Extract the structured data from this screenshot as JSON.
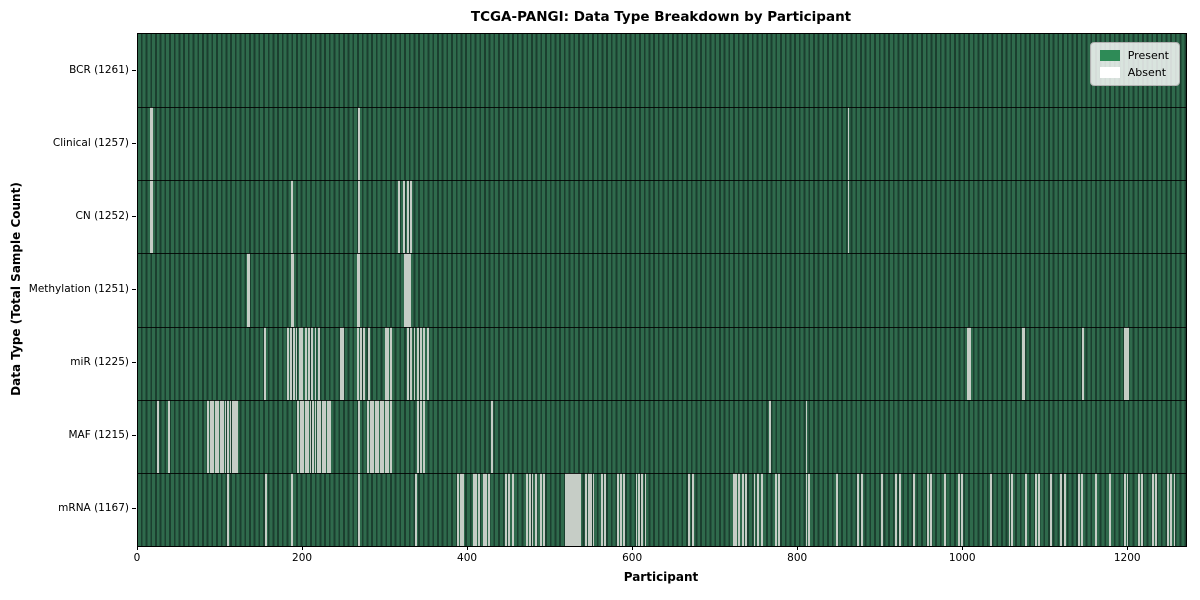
{
  "title": "TCGA-PANGI: Data Type Breakdown by Participant",
  "chart_data": {
    "type": "heatmap",
    "title": "TCGA-PANGI: Data Type Breakdown by Participant",
    "xlabel": "Participant",
    "ylabel": "Data Type (Total Sample Count)",
    "x_ticks": [
      0,
      200,
      400,
      600,
      800,
      1000,
      1200
    ],
    "x_range": [
      0,
      1270
    ],
    "total_participants": 1261,
    "grid": false,
    "legend_position": "upper right",
    "cell_encoding": "each row is green (present) for all participants 0-1260 except indices listed in absent_participants (white gaps)",
    "rows": [
      {
        "label": "BCR (1261)",
        "data_type": "BCR",
        "sample_count": 1261,
        "absent_count": 0,
        "absent_participants": []
      },
      {
        "label": "Clinical (1257)",
        "data_type": "Clinical",
        "sample_count": 1257,
        "absent_count": 4,
        "absent_participants": [
          16,
          17,
          268,
          861
        ]
      },
      {
        "label": "CN (1252)",
        "data_type": "CN",
        "sample_count": 1252,
        "absent_count": 9,
        "absent_participants": [
          16,
          17,
          187,
          268,
          316,
          322,
          327,
          331,
          861
        ]
      },
      {
        "label": "Methylation (1251)",
        "data_type": "Methylation",
        "sample_count": 1251,
        "absent_count": 10,
        "absent_participants": [
          133,
          134,
          187,
          188,
          267,
          268,
          324,
          326,
          328,
          330
        ]
      },
      {
        "label": "miR (1225)",
        "data_type": "miR",
        "sample_count": 1225,
        "absent_count": 36,
        "absent_participants": [
          154,
          182,
          185,
          189,
          192,
          196,
          199,
          203,
          207,
          211,
          215,
          219,
          246,
          248,
          267,
          270,
          274,
          280,
          300,
          303,
          307,
          327,
          331,
          335,
          339,
          343,
          347,
          351,
          1006,
          1008,
          1072,
          1074,
          1145,
          1196,
          1198,
          1200
        ]
      },
      {
        "label": "MAF (1215)",
        "data_type": "MAF",
        "sample_count": 1215,
        "absent_count": 46,
        "absent_participants": [
          24,
          37,
          85,
          88,
          91,
          94,
          97,
          100,
          103,
          106,
          109,
          112,
          115,
          117,
          120,
          194,
          197,
          200,
          203,
          206,
          209,
          212,
          215,
          218,
          221,
          224,
          227,
          230,
          233,
          268,
          279,
          282,
          285,
          288,
          291,
          294,
          297,
          300,
          303,
          306,
          339,
          343,
          347,
          429,
          766,
          810
        ]
      },
      {
        "label": "mRNA (1167)",
        "data_type": "mRNA",
        "sample_count": 1167,
        "absent_count": 94,
        "absent_participants": [
          109,
          155,
          187,
          268,
          337,
          388,
          391,
          394,
          407,
          410,
          413,
          419,
          422,
          425,
          446,
          450,
          454,
          471,
          475,
          478,
          482,
          488,
          492,
          518,
          520,
          522,
          524,
          526,
          528,
          530,
          532,
          534,
          536,
          543,
          546,
          549,
          552,
          562,
          566,
          582,
          585,
          589,
          604,
          607,
          611,
          615,
          668,
          672,
          722,
          725,
          728,
          733,
          737,
          747,
          751,
          756,
          773,
          777,
          810,
          813,
          847,
          873,
          877,
          902,
          919,
          923,
          940,
          957,
          961,
          978,
          995,
          999,
          1034,
          1056,
          1059,
          1076,
          1088,
          1092,
          1106,
          1119,
          1123,
          1140,
          1144,
          1161,
          1178,
          1196,
          1199,
          1213,
          1217,
          1230,
          1234,
          1248,
          1252,
          1256
        ]
      }
    ],
    "legend": {
      "items": [
        {
          "label": "Present",
          "color": "#2e8b57"
        },
        {
          "label": "Absent",
          "color": "#ffffff"
        }
      ]
    }
  },
  "colors": {
    "present_fill": "#2e8b57",
    "absent_fill": "#ffffff",
    "stripe_light": "#2f6a4c",
    "stripe_dark": "#1b3f2f",
    "gap_line": "#c6cdc6",
    "divider": "rgba(0,0,0,0.85)",
    "legend_border": "#b0b0b0",
    "text": "#000000"
  }
}
